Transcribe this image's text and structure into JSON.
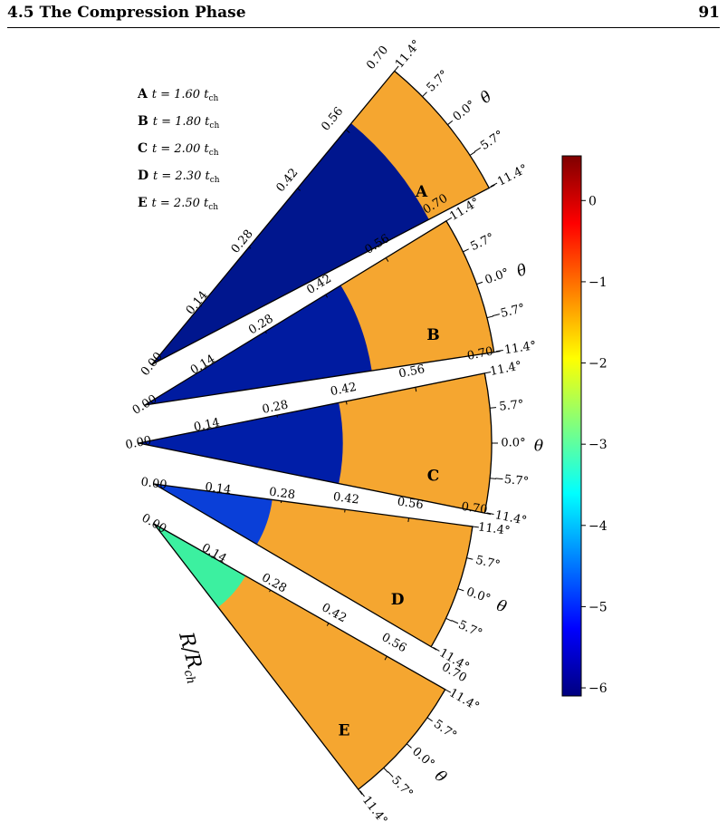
{
  "header": {
    "section_title": "4.5 The Compression Phase",
    "page_number": "91"
  },
  "legend": [
    {
      "letter": "A",
      "text": "t = 1.60 t",
      "sub": "ch"
    },
    {
      "letter": "B",
      "text": "t = 1.80 t",
      "sub": "ch"
    },
    {
      "letter": "C",
      "text": "t = 2.00 t",
      "sub": "ch"
    },
    {
      "letter": "D",
      "text": "t = 2.30 t",
      "sub": "ch"
    },
    {
      "letter": "E",
      "text": "t = 2.50 t",
      "sub": "ch"
    }
  ],
  "radial_axis": {
    "label_main": "R/R",
    "label_sub": "ch",
    "ticks": [
      "0.00",
      "0.14",
      "0.28",
      "0.42",
      "0.56",
      "0.70"
    ]
  },
  "angular_axis": {
    "label": "θ",
    "ticks": [
      "11.4°",
      "5.7°",
      "0.0°",
      "−5.7°",
      "−11.4°"
    ]
  },
  "colorbar": {
    "ticks": [
      "0",
      "−1",
      "−2",
      "−3",
      "−4",
      "−5",
      "−6"
    ],
    "range": [
      -6.1,
      0.55
    ],
    "colormap": "jet",
    "colors": [
      "#00007f",
      "#0000ff",
      "#007fff",
      "#00ffff",
      "#7fff7f",
      "#ffff00",
      "#ff7f00",
      "#ff0000",
      "#7f0000"
    ]
  },
  "panels": [
    {
      "letter": "A",
      "fill": "#f5a630",
      "inner": "#00168e",
      "front": 0.575
    },
    {
      "letter": "B",
      "fill": "#f5a630",
      "inner": "#001ba0",
      "front": 0.455
    },
    {
      "letter": "C",
      "fill": "#f5a630",
      "inner": "#001ea8",
      "front": 0.405
    },
    {
      "letter": "D",
      "fill": "#f5a630",
      "inner": "#0a3fd8",
      "front": 0.26
    },
    {
      "letter": "E",
      "fill": "#f5a630",
      "inner": "#3cf0a0",
      "front": 0.22
    }
  ]
}
